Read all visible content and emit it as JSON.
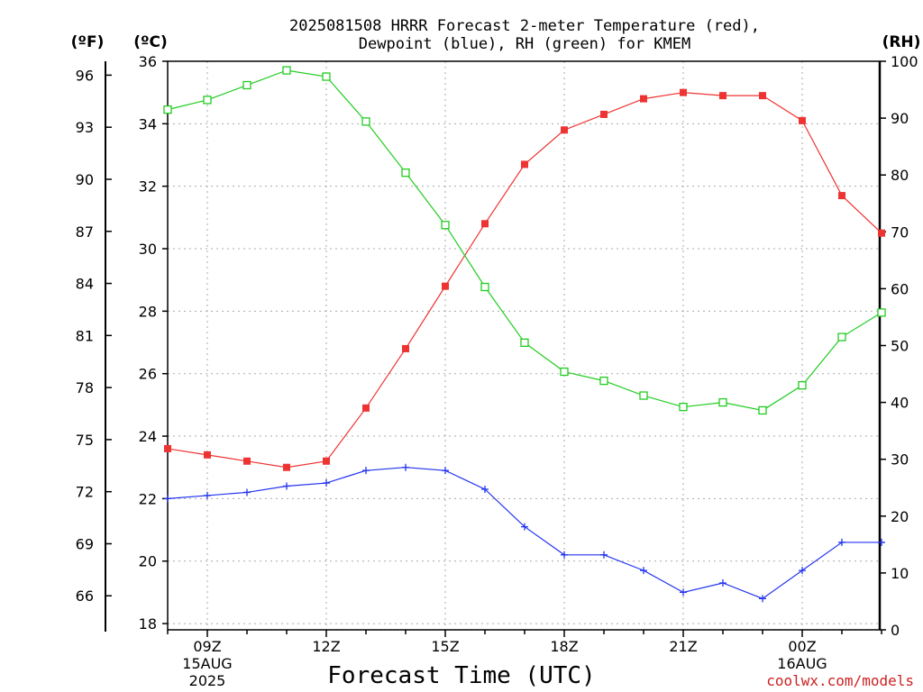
{
  "title": {
    "line1": "2025081508 HRRR Forecast 2-meter Temperature (red),",
    "line2": "Dewpoint (blue), RH (green) for KMEM"
  },
  "units": {
    "fahrenheit": "(ºF)",
    "celsius": "(ºC)",
    "rh": "(RH)"
  },
  "xlabel": "Forecast Time (UTC)",
  "credit": "coolwx.com/models",
  "colors": {
    "temperature": "#ee3333",
    "dewpoint": "#2233ee",
    "rh": "#22cc22",
    "grid": "#aaaaaa",
    "credit": "#cc2222"
  },
  "chart_data": {
    "type": "line",
    "x": [
      "08Z",
      "09Z",
      "10Z",
      "11Z",
      "12Z",
      "13Z",
      "14Z",
      "15Z",
      "16Z",
      "17Z",
      "18Z",
      "19Z",
      "20Z",
      "21Z",
      "22Z",
      "23Z",
      "00Z",
      "01Z",
      "02Z"
    ],
    "x_tick_labels": [
      {
        "label": "09Z",
        "line2": "15AUG",
        "line3": "2025"
      },
      {
        "label": "12Z",
        "line2": "",
        "line3": ""
      },
      {
        "label": "15Z",
        "line2": "",
        "line3": ""
      },
      {
        "label": "18Z",
        "line2": "",
        "line3": ""
      },
      {
        "label": "21Z",
        "line2": "",
        "line3": ""
      },
      {
        "label": "00Z",
        "line2": "16AUG",
        "line3": ""
      }
    ],
    "series": [
      {
        "key": "temperature",
        "axis": "celsius",
        "values": [
          23.6,
          23.4,
          23.2,
          23.0,
          23.2,
          24.9,
          26.8,
          28.8,
          30.8,
          32.7,
          33.8,
          34.3,
          34.8,
          35.0,
          34.9,
          34.9,
          34.1,
          31.7,
          30.5
        ]
      },
      {
        "key": "dewpoint",
        "axis": "celsius",
        "values": [
          22.0,
          22.1,
          22.2,
          22.4,
          22.5,
          22.9,
          23.0,
          22.9,
          22.3,
          21.1,
          20.2,
          20.2,
          19.7,
          19.0,
          19.3,
          18.8,
          19.7,
          20.6,
          20.6
        ]
      },
      {
        "key": "rh",
        "axis": "rh",
        "values": [
          91.5,
          93.2,
          95.8,
          98.4,
          97.3,
          89.4,
          80.4,
          71.2,
          60.3,
          50.5,
          45.4,
          43.8,
          41.2,
          39.2,
          40.0,
          38.6,
          43.0,
          51.5,
          55.8
        ]
      }
    ],
    "yaxes": {
      "celsius": {
        "ylim": [
          17.8,
          36.0
        ],
        "ticks": [
          18,
          20,
          22,
          24,
          26,
          28,
          30,
          32,
          34,
          36
        ]
      },
      "fahrenheit": {
        "ticks": [
          66,
          69,
          72,
          75,
          78,
          81,
          84,
          87,
          90,
          93,
          96
        ]
      },
      "rh": {
        "ylim": [
          0,
          100
        ],
        "ticks": [
          0,
          10,
          20,
          30,
          40,
          50,
          60,
          70,
          80,
          90,
          100
        ]
      }
    },
    "grid": true
  }
}
